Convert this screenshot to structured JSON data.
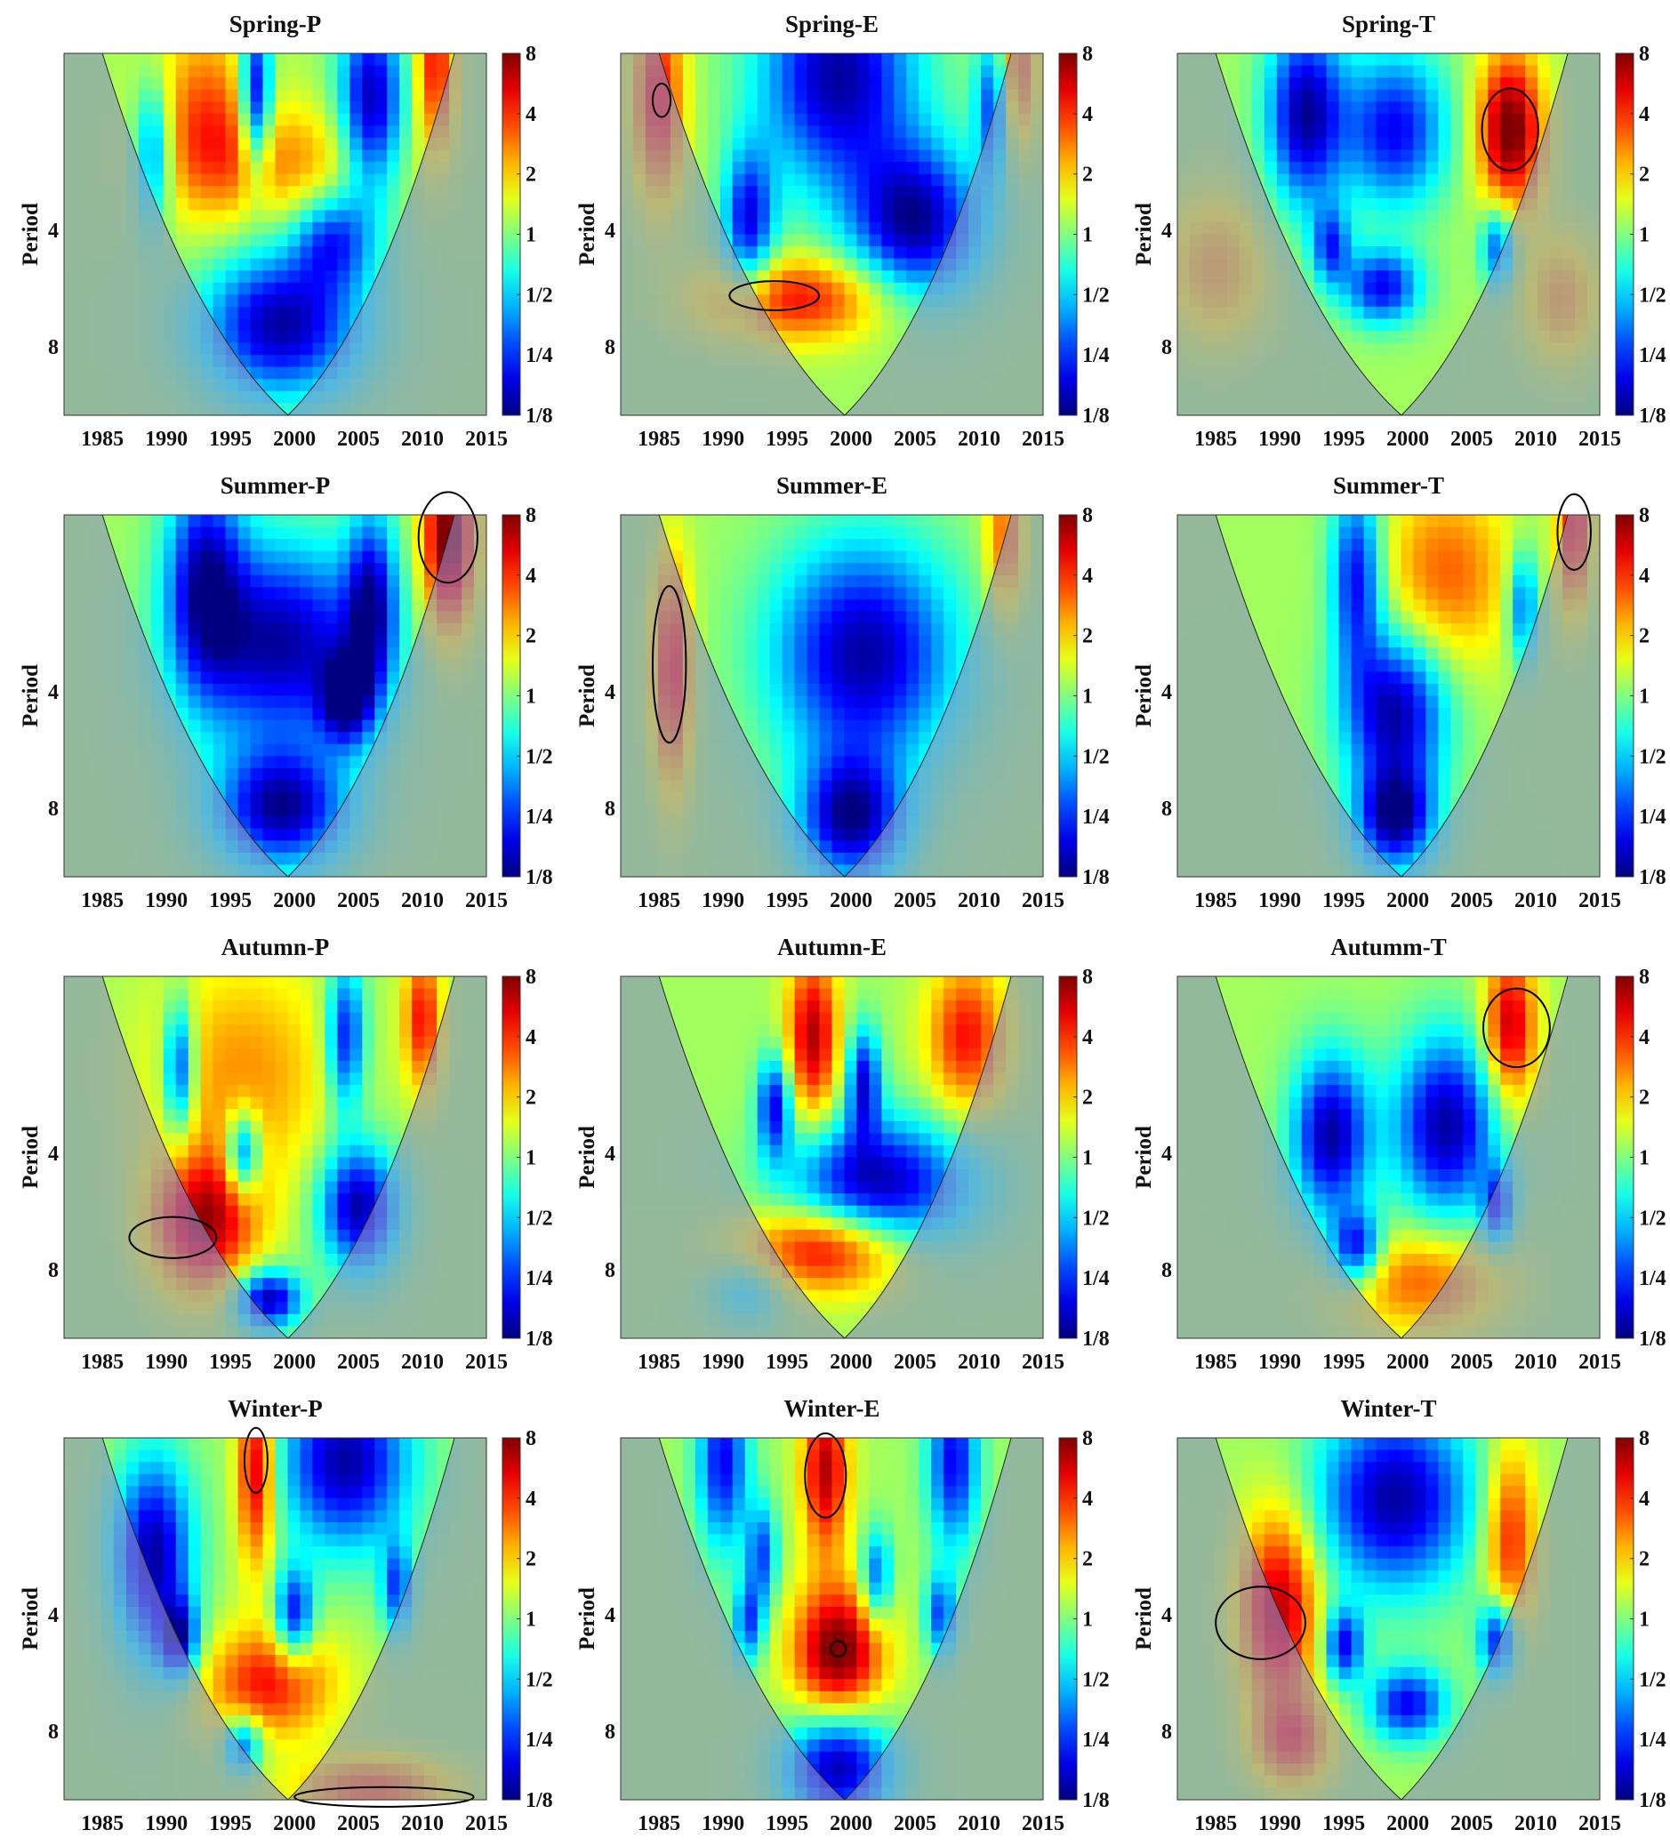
{
  "chart_data": {
    "type": "heatmap",
    "subtype": "wavelet-power-spectrum-grid",
    "rows": 4,
    "cols": 3,
    "ylabel": "Period",
    "x_ticks": [
      "1985",
      "1990",
      "1995",
      "2000",
      "2005",
      "2010",
      "2015"
    ],
    "xlim": [
      1982,
      2015
    ],
    "y_ticks": [
      "4",
      "8"
    ],
    "ylim_period": [
      1.4,
      12
    ],
    "colorbar_ticks": [
      "8",
      "4",
      "2",
      "1",
      "1/2",
      "1/4",
      "1/8"
    ],
    "colormap": "jet",
    "coi_shading": "#8a8ac8",
    "contour_color": "#000000",
    "panels": [
      {
        "title": "Spring-P",
        "blobs": [
          {
            "x": 1993,
            "p": 2.0,
            "v": 1.5,
            "rx": 4,
            "ry": 0.8
          },
          {
            "x": 1999,
            "p": 2.7,
            "v": 1.2,
            "rx": 8,
            "ry": 0.6
          },
          {
            "x": 1997,
            "p": 1.8,
            "v": -3,
            "rx": 1.2,
            "ry": 0.6
          },
          {
            "x": 2006,
            "p": 1.9,
            "v": -3,
            "rx": 2.5,
            "ry": 0.8
          },
          {
            "x": 1989,
            "p": 2.5,
            "v": -2,
            "rx": 1.5,
            "ry": 0.7
          },
          {
            "x": 1999,
            "p": 7.0,
            "v": -3,
            "rx": 6,
            "ry": 2.0
          },
          {
            "x": 2003,
            "p": 4.2,
            "v": -2,
            "rx": 3,
            "ry": 0.7
          },
          {
            "x": 2011,
            "p": 1.5,
            "v": 2,
            "rx": 1.5,
            "ry": 0.5
          }
        ],
        "contours": []
      },
      {
        "title": "Spring-E",
        "blobs": [
          {
            "x": 1985,
            "p": 1.8,
            "v": 2,
            "rx": 2,
            "ry": 0.8
          },
          {
            "x": 1999,
            "p": 1.6,
            "v": -3,
            "rx": 6,
            "ry": 0.8
          },
          {
            "x": 2005,
            "p": 3.8,
            "v": -3,
            "rx": 5,
            "ry": 1.2
          },
          {
            "x": 1992,
            "p": 3.8,
            "v": -2.5,
            "rx": 2,
            "ry": 1.1
          },
          {
            "x": 1996,
            "p": 6.0,
            "v": 2,
            "rx": 7,
            "ry": 0.8
          },
          {
            "x": 2011,
            "p": 1.9,
            "v": -2,
            "rx": 1.3,
            "ry": 0.5
          },
          {
            "x": 2013,
            "p": 1.5,
            "v": 1.5,
            "rx": 1.5,
            "ry": 0.5
          }
        ],
        "contours": [
          {
            "x": 1985.2,
            "p": 1.85,
            "rx": 0.7,
            "ry": 0.15
          },
          {
            "x": 1994,
            "p": 5.9,
            "rx": 3.5,
            "ry": 0.4
          }
        ]
      },
      {
        "title": "Spring-T",
        "blobs": [
          {
            "x": 2008,
            "p": 2.2,
            "v": 3,
            "rx": 2.5,
            "ry": 0.7
          },
          {
            "x": 1992,
            "p": 2.0,
            "v": -3,
            "rx": 3,
            "ry": 0.8
          },
          {
            "x": 1999,
            "p": 2.2,
            "v": -2.5,
            "rx": 4,
            "ry": 0.7
          },
          {
            "x": 1998,
            "p": 5.6,
            "v": -2.5,
            "rx": 3,
            "ry": 0.6
          },
          {
            "x": 1994,
            "p": 4.4,
            "v": -2,
            "rx": 1.5,
            "ry": 0.5
          },
          {
            "x": 2007,
            "p": 4.4,
            "v": -2,
            "rx": 1.3,
            "ry": 0.5
          },
          {
            "x": 1985,
            "p": 5,
            "v": 1,
            "rx": 4,
            "ry": 1.5
          },
          {
            "x": 2012,
            "p": 6,
            "v": 1,
            "rx": 3,
            "ry": 1.5
          }
        ],
        "contours": [
          {
            "x": 2008,
            "p": 2.2,
            "rx": 2.2,
            "ry": 0.55
          }
        ]
      },
      {
        "title": "Summer-P",
        "blobs": [
          {
            "x": 1999,
            "p": 3.0,
            "v": -3,
            "rx": 7,
            "ry": 1.3
          },
          {
            "x": 1999,
            "p": 8.0,
            "v": -3,
            "rx": 5,
            "ry": 1.8
          },
          {
            "x": 1993,
            "p": 2.0,
            "v": -2.5,
            "rx": 3,
            "ry": 1.0
          },
          {
            "x": 2006,
            "p": 2.4,
            "v": -2.5,
            "rx": 2,
            "ry": 1.0
          },
          {
            "x": 2004,
            "p": 4.2,
            "v": -2.5,
            "rx": 2,
            "ry": 0.6
          },
          {
            "x": 2012,
            "p": 1.6,
            "v": 3,
            "rx": 2,
            "ry": 0.6
          }
        ],
        "contours": [
          {
            "x": 2012,
            "p": 1.6,
            "rx": 2.3,
            "ry": 0.45
          }
        ]
      },
      {
        "title": "Summer-E",
        "blobs": [
          {
            "x": 1986,
            "p": 3.5,
            "v": 2,
            "rx": 1.5,
            "ry": 1.8
          },
          {
            "x": 2001,
            "p": 3.2,
            "v": -3,
            "rx": 7,
            "ry": 1.6
          },
          {
            "x": 2000,
            "p": 8.5,
            "v": -3,
            "rx": 4,
            "ry": 2.0
          },
          {
            "x": 2012,
            "p": 1.6,
            "v": 1.5,
            "rx": 1.5,
            "ry": 0.5
          }
        ],
        "contours": [
          {
            "x": 1985.8,
            "p": 3.4,
            "rx": 1.3,
            "ry": 1.9
          }
        ]
      },
      {
        "title": "Summer-T",
        "blobs": [
          {
            "x": 2003,
            "p": 2.0,
            "v": 1.5,
            "rx": 5,
            "ry": 0.8
          },
          {
            "x": 1999,
            "p": 4.5,
            "v": -3,
            "rx": 4,
            "ry": 1.5
          },
          {
            "x": 1996,
            "p": 2.0,
            "v": -2.5,
            "rx": 2,
            "ry": 0.8
          },
          {
            "x": 1999,
            "p": 8.5,
            "v": -3,
            "rx": 3,
            "ry": 1.5
          },
          {
            "x": 2009,
            "p": 2.4,
            "v": -2,
            "rx": 1.2,
            "ry": 0.5
          },
          {
            "x": 2013,
            "p": 1.5,
            "v": 2,
            "rx": 1.3,
            "ry": 0.5
          }
        ],
        "contours": [
          {
            "x": 2013,
            "p": 1.55,
            "rx": 1.3,
            "ry": 0.35
          }
        ]
      },
      {
        "title": "Autumn-P",
        "blobs": [
          {
            "x": 1996,
            "p": 2.5,
            "v": 1.2,
            "rx": 7,
            "ry": 1.3
          },
          {
            "x": 1993,
            "p": 6.0,
            "v": 2.5,
            "rx": 4,
            "ry": 1.6
          },
          {
            "x": 1991,
            "p": 2.4,
            "v": -2.5,
            "rx": 1.2,
            "ry": 0.6
          },
          {
            "x": 1996,
            "p": 4.0,
            "v": -2.5,
            "rx": 1.3,
            "ry": 0.5
          },
          {
            "x": 2005,
            "p": 5.5,
            "v": -3,
            "rx": 3,
            "ry": 1.3
          },
          {
            "x": 2004,
            "p": 2.0,
            "v": -2.5,
            "rx": 1.5,
            "ry": 0.6
          },
          {
            "x": 1998,
            "p": 9.5,
            "v": -3,
            "rx": 2.5,
            "ry": 0.6
          },
          {
            "x": 2010,
            "p": 1.8,
            "v": 2,
            "rx": 1.5,
            "ry": 0.5
          }
        ],
        "contours": [
          {
            "x": 1990.5,
            "p": 6.6,
            "rx": 3.4,
            "ry": 0.7
          }
        ]
      },
      {
        "title": "Autumn-E",
        "blobs": [
          {
            "x": 1997,
            "p": 2.0,
            "v": 2.5,
            "rx": 2,
            "ry": 0.7
          },
          {
            "x": 2009,
            "p": 2.0,
            "v": 2,
            "rx": 3,
            "ry": 0.6
          },
          {
            "x": 2002,
            "p": 4.8,
            "v": -3,
            "rx": 7,
            "ry": 1.2
          },
          {
            "x": 1994,
            "p": 3.0,
            "v": -2.5,
            "rx": 1.3,
            "ry": 0.5
          },
          {
            "x": 2001,
            "p": 2.6,
            "v": -2.5,
            "rx": 1.3,
            "ry": 0.5
          },
          {
            "x": 1998,
            "p": 7.0,
            "v": 2.5,
            "rx": 6,
            "ry": 1.0
          },
          {
            "x": 1992,
            "p": 9.0,
            "v": -1,
            "rx": 3,
            "ry": 0.8
          }
        ],
        "contours": []
      },
      {
        "title": "Autumm-T",
        "blobs": [
          {
            "x": 1994,
            "p": 3.6,
            "v": -3,
            "rx": 3,
            "ry": 1.2
          },
          {
            "x": 2003,
            "p": 3.4,
            "v": -3,
            "rx": 4,
            "ry": 1.3
          },
          {
            "x": 1996,
            "p": 7.0,
            "v": -2.5,
            "rx": 2,
            "ry": 0.7
          },
          {
            "x": 2007,
            "p": 5.5,
            "v": -2,
            "rx": 1.2,
            "ry": 0.6
          },
          {
            "x": 2008,
            "p": 1.9,
            "v": 2.5,
            "rx": 2,
            "ry": 0.6
          },
          {
            "x": 2001,
            "p": 8.5,
            "v": 1.5,
            "rx": 6,
            "ry": 1.5
          }
        ],
        "contours": [
          {
            "x": 2008.5,
            "p": 1.9,
            "rx": 2.6,
            "ry": 0.45
          }
        ]
      },
      {
        "title": "Winter-P",
        "blobs": [
          {
            "x": 1989,
            "p": 2.8,
            "v": -3,
            "rx": 3,
            "ry": 1.2
          },
          {
            "x": 2004,
            "p": 1.6,
            "v": -3,
            "rx": 5,
            "ry": 0.6
          },
          {
            "x": 1997,
            "p": 1.7,
            "v": 2.5,
            "rx": 1.5,
            "ry": 0.7
          },
          {
            "x": 1998,
            "p": 6.0,
            "v": 2,
            "rx": 5,
            "ry": 1.2
          },
          {
            "x": 2000,
            "p": 4.0,
            "v": -2.5,
            "rx": 1.5,
            "ry": 0.6
          },
          {
            "x": 1991,
            "p": 4.6,
            "v": -2.5,
            "rx": 1.5,
            "ry": 0.5
          },
          {
            "x": 2008,
            "p": 3.4,
            "v": -2,
            "rx": 1.2,
            "ry": 0.5
          },
          {
            "x": 1996,
            "p": 8.6,
            "v": -2,
            "rx": 1.5,
            "ry": 0.5
          },
          {
            "x": 2006,
            "p": 11.2,
            "v": 1.5,
            "rx": 6,
            "ry": 0.8
          }
        ],
        "contours": [
          {
            "x": 1997,
            "p": 1.6,
            "rx": 0.9,
            "ry": 0.3
          },
          {
            "x": 2007,
            "p": 11.8,
            "rx": 7,
            "ry": 0.45
          }
        ]
      },
      {
        "title": "Winter-E",
        "blobs": [
          {
            "x": 1998,
            "p": 1.7,
            "v": 2.5,
            "rx": 1.8,
            "ry": 0.6
          },
          {
            "x": 1999,
            "p": 5.0,
            "v": 3,
            "rx": 3.5,
            "ry": 1.3
          },
          {
            "x": 1999,
            "p": 9.8,
            "v": -3,
            "rx": 4,
            "ry": 2.0
          },
          {
            "x": 1990,
            "p": 1.6,
            "v": -2.5,
            "rx": 2,
            "ry": 0.6
          },
          {
            "x": 1993,
            "p": 2.8,
            "v": -2,
            "rx": 1.2,
            "ry": 0.5
          },
          {
            "x": 2002,
            "p": 3.2,
            "v": -2,
            "rx": 1.2,
            "ry": 0.5
          },
          {
            "x": 2008,
            "p": 1.6,
            "v": -2.5,
            "rx": 2,
            "ry": 0.6
          },
          {
            "x": 1992,
            "p": 4.2,
            "v": -2,
            "rx": 1.2,
            "ry": 0.5
          },
          {
            "x": 2007,
            "p": 4.0,
            "v": -2,
            "rx": 1.2,
            "ry": 0.5
          }
        ],
        "contours": [
          {
            "x": 1998,
            "p": 1.75,
            "rx": 1.6,
            "ry": 0.45
          },
          {
            "x": 1999,
            "p": 4.9,
            "rx": 0.6,
            "ry": 0.12
          }
        ]
      },
      {
        "title": "Winter-T",
        "blobs": [
          {
            "x": 1990,
            "p": 3.8,
            "v": 2.5,
            "rx": 3,
            "ry": 1.6
          },
          {
            "x": 2008,
            "p": 2.5,
            "v": 2,
            "rx": 2,
            "ry": 1.0
          },
          {
            "x": 1999,
            "p": 2.0,
            "v": -3,
            "rx": 6,
            "ry": 0.8
          },
          {
            "x": 1995,
            "p": 4.8,
            "v": -2.5,
            "rx": 1.5,
            "ry": 0.5
          },
          {
            "x": 2007,
            "p": 4.6,
            "v": -2.5,
            "rx": 1.5,
            "ry": 0.5
          },
          {
            "x": 2000,
            "p": 6.8,
            "v": -2.5,
            "rx": 3,
            "ry": 0.7
          },
          {
            "x": 1991,
            "p": 8.5,
            "v": 1.5,
            "rx": 3,
            "ry": 1.2
          }
        ],
        "contours": [
          {
            "x": 1988.5,
            "p": 4.2,
            "rx": 3.5,
            "ry": 0.9
          }
        ]
      }
    ]
  }
}
